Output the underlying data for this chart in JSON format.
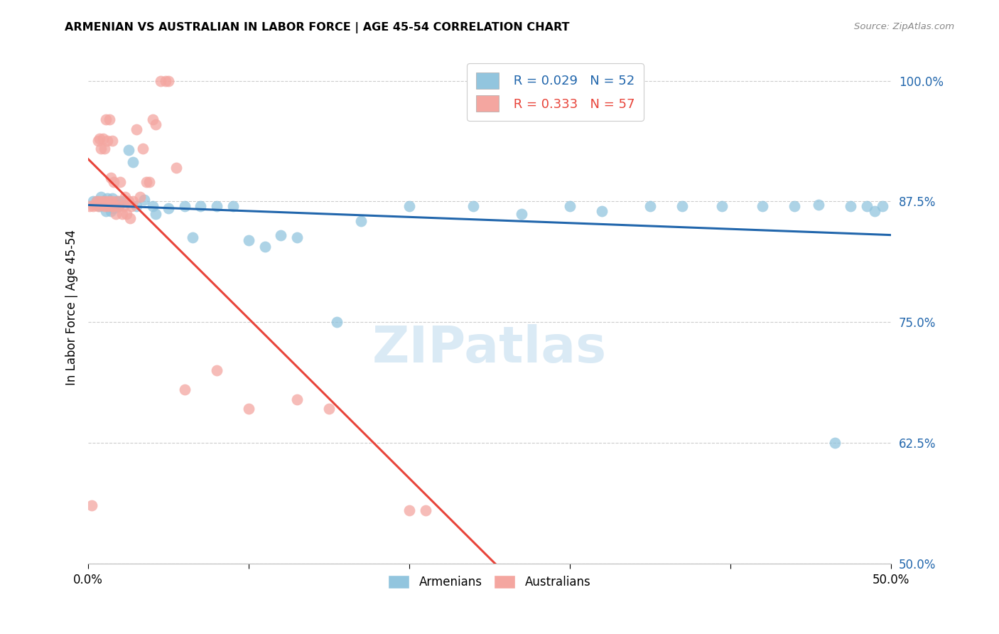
{
  "title": "ARMENIAN VS AUSTRALIAN IN LABOR FORCE | AGE 45-54 CORRELATION CHART",
  "source": "Source: ZipAtlas.com",
  "ylabel": "In Labor Force | Age 45-54",
  "xmin": 0.0,
  "xmax": 0.5,
  "ymin": 0.5,
  "ymax": 1.03,
  "legend_blue_r": "R = 0.029",
  "legend_blue_n": "N = 52",
  "legend_pink_r": "R = 0.333",
  "legend_pink_n": "N = 57",
  "blue_color": "#92c5de",
  "pink_color": "#f4a6a0",
  "blue_line_color": "#2166ac",
  "pink_line_color": "#e8443a",
  "watermark_color": "#daeaf5",
  "armenians_label": "Armenians",
  "australians_label": "Australians",
  "blue_points_x": [
    0.003,
    0.005,
    0.006,
    0.007,
    0.008,
    0.009,
    0.01,
    0.011,
    0.012,
    0.013,
    0.014,
    0.015,
    0.016,
    0.017,
    0.018,
    0.019,
    0.02,
    0.022,
    0.025,
    0.028,
    0.03,
    0.035,
    0.04,
    0.042,
    0.05,
    0.06,
    0.065,
    0.07,
    0.08,
    0.09,
    0.1,
    0.11,
    0.12,
    0.13,
    0.155,
    0.17,
    0.2,
    0.24,
    0.27,
    0.3,
    0.32,
    0.35,
    0.37,
    0.395,
    0.42,
    0.44,
    0.455,
    0.465,
    0.475,
    0.485,
    0.49,
    0.495
  ],
  "blue_points_y": [
    0.875,
    0.875,
    0.872,
    0.87,
    0.88,
    0.875,
    0.872,
    0.865,
    0.878,
    0.87,
    0.865,
    0.878,
    0.868,
    0.872,
    0.875,
    0.87,
    0.875,
    0.875,
    0.928,
    0.916,
    0.87,
    0.877,
    0.87,
    0.862,
    0.868,
    0.87,
    0.838,
    0.87,
    0.87,
    0.87,
    0.835,
    0.828,
    0.84,
    0.838,
    0.75,
    0.855,
    0.87,
    0.87,
    0.862,
    0.87,
    0.865,
    0.87,
    0.87,
    0.87,
    0.87,
    0.87,
    0.872,
    0.625,
    0.87,
    0.87,
    0.865,
    0.87
  ],
  "pink_points_x": [
    0.001,
    0.002,
    0.003,
    0.004,
    0.005,
    0.006,
    0.006,
    0.007,
    0.007,
    0.008,
    0.008,
    0.009,
    0.009,
    0.01,
    0.01,
    0.011,
    0.011,
    0.012,
    0.012,
    0.013,
    0.013,
    0.014,
    0.014,
    0.015,
    0.015,
    0.016,
    0.016,
    0.017,
    0.018,
    0.019,
    0.02,
    0.021,
    0.022,
    0.023,
    0.024,
    0.025,
    0.026,
    0.027,
    0.028,
    0.03,
    0.032,
    0.034,
    0.036,
    0.038,
    0.04,
    0.042,
    0.045,
    0.048,
    0.05,
    0.055,
    0.06,
    0.08,
    0.1,
    0.13,
    0.15,
    0.2,
    0.21
  ],
  "pink_points_y": [
    0.87,
    0.56,
    0.87,
    0.872,
    0.875,
    0.87,
    0.938,
    0.875,
    0.94,
    0.872,
    0.93,
    0.875,
    0.94,
    0.87,
    0.93,
    0.875,
    0.96,
    0.87,
    0.938,
    0.875,
    0.96,
    0.87,
    0.9,
    0.875,
    0.938,
    0.87,
    0.895,
    0.862,
    0.875,
    0.87,
    0.895,
    0.862,
    0.87,
    0.88,
    0.862,
    0.875,
    0.858,
    0.87,
    0.875,
    0.95,
    0.88,
    0.93,
    0.895,
    0.895,
    0.96,
    0.955,
    1.0,
    1.0,
    1.0,
    0.91,
    0.68,
    0.7,
    0.66,
    0.67,
    0.66,
    0.555,
    0.555
  ]
}
